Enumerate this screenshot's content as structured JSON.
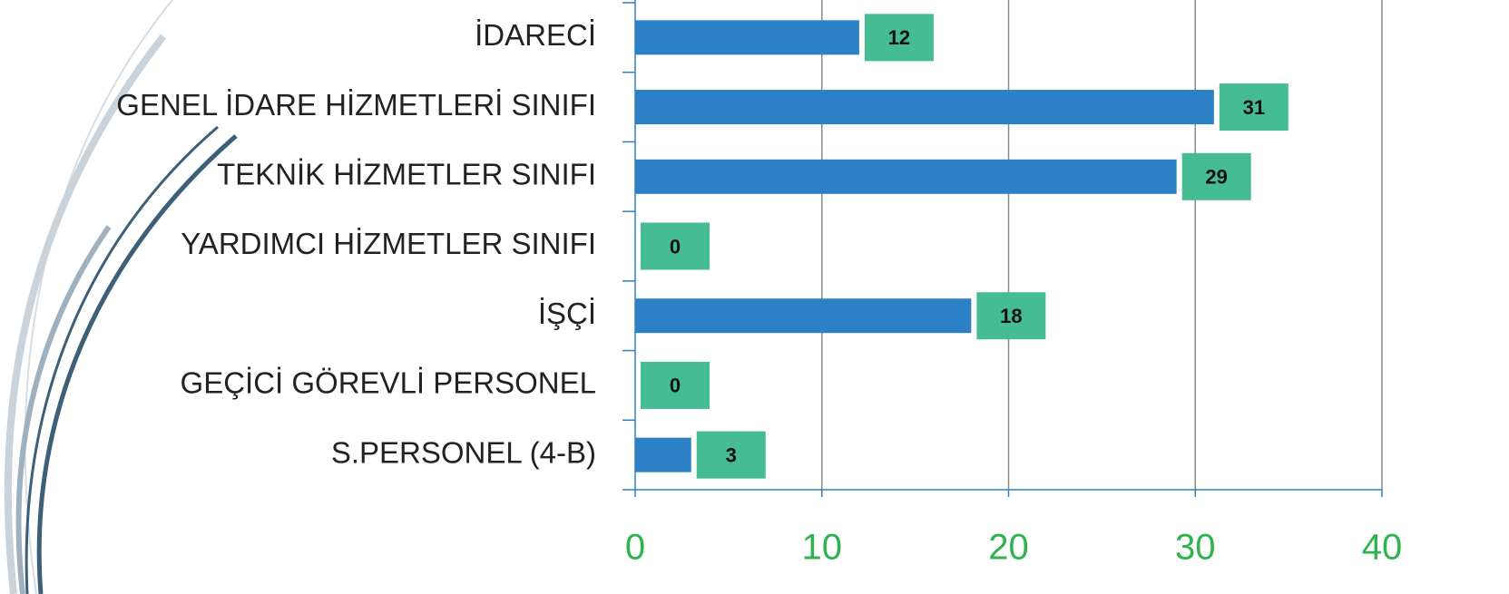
{
  "chart_data": {
    "type": "bar",
    "orientation": "horizontal",
    "categories": [
      "İDARECİ",
      "GENEL İDARE HİZMETLERİ SINIFI",
      "TEKNİK HİZMETLER SINIFI",
      "YARDIMCI HİZMETLER SINIFI",
      "İŞÇİ",
      "GEÇİCİ GÖREVLİ PERSONEL",
      "S.PERSONEL (4-B)"
    ],
    "values": [
      12,
      31,
      29,
      0,
      18,
      0,
      3
    ],
    "color": "#2b80c6",
    "label_color": "#46bc94",
    "xlim": [
      0,
      40
    ],
    "xticks": [
      0,
      10,
      20,
      30,
      40
    ],
    "grid": true
  }
}
